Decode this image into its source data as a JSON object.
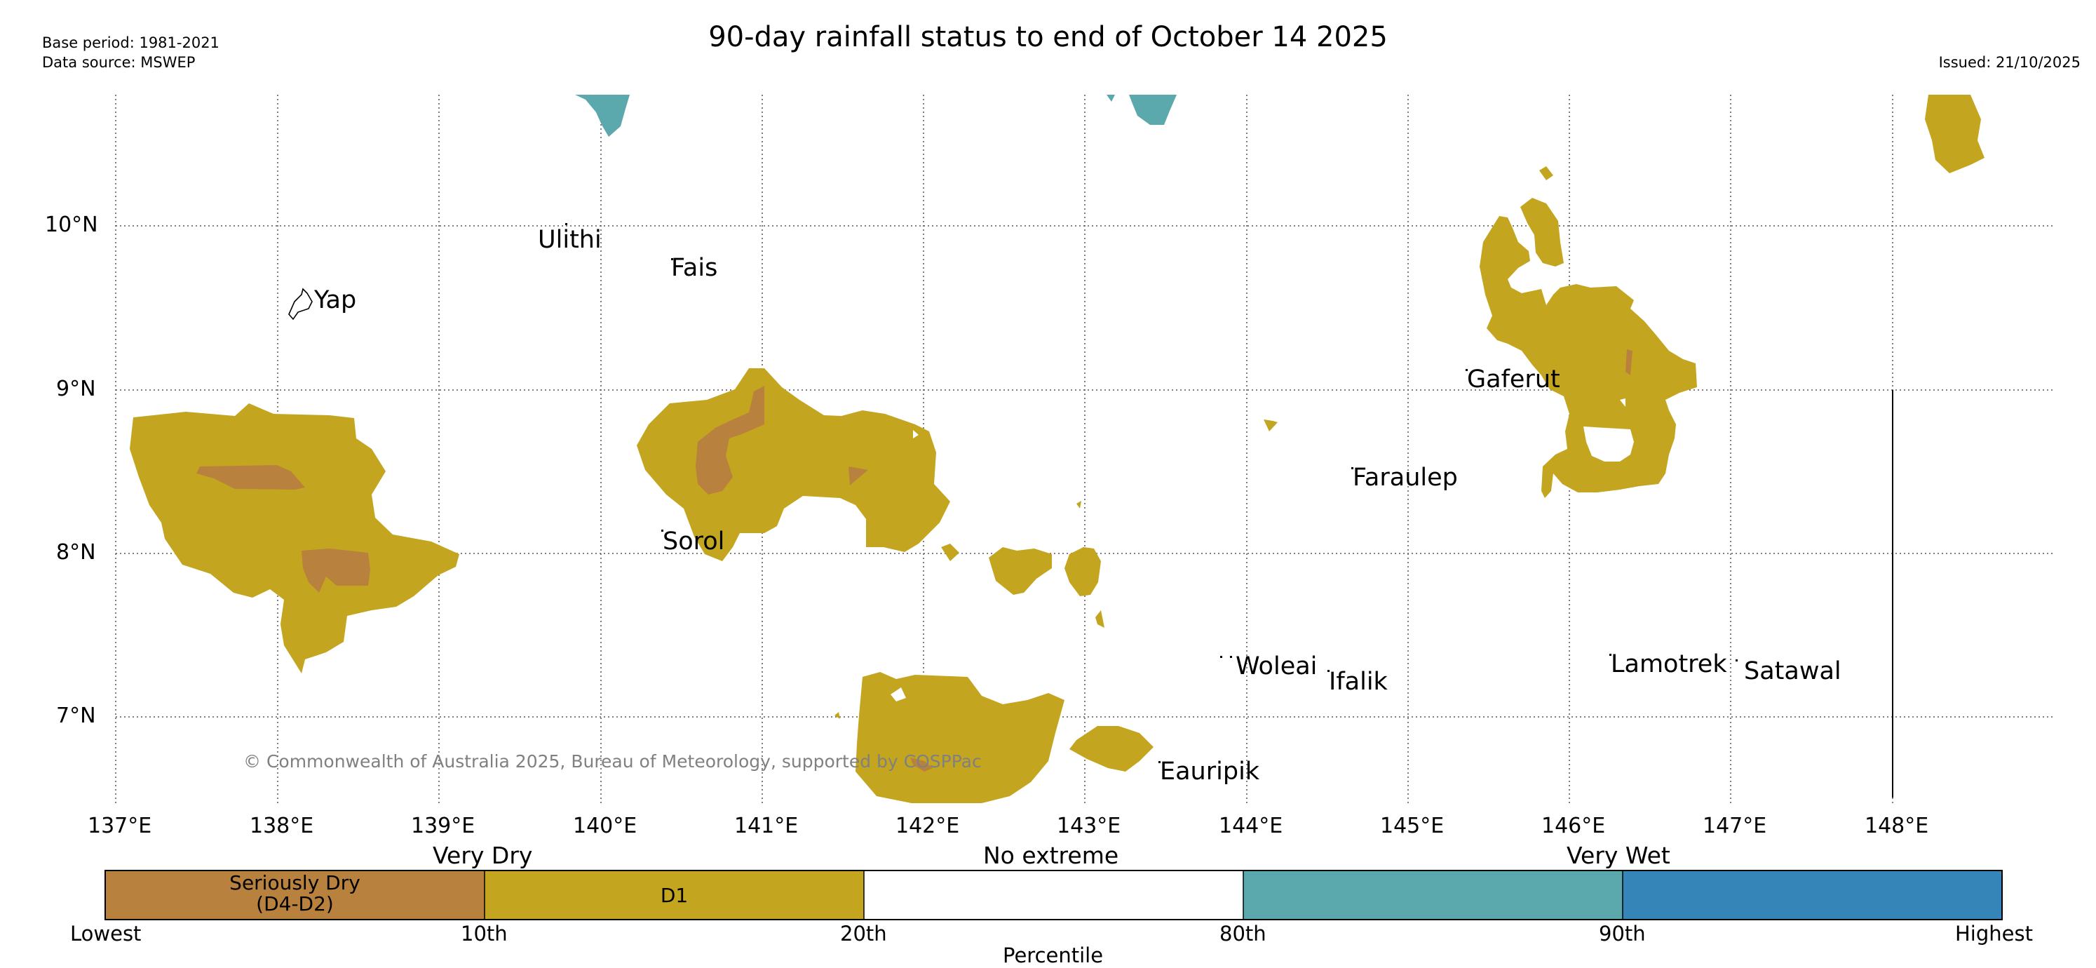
{
  "header": {
    "title": "90-day rainfall status to end of October 14 2025",
    "base_period": "Base period: 1981-2021",
    "data_source": "Data source: MSWEP",
    "issued": "Issued: 21/10/2025"
  },
  "map": {
    "lat_ticks": [
      "10°N",
      "9°N",
      "8°N",
      "7°N"
    ],
    "lon_ticks": [
      "137°E",
      "138°E",
      "139°E",
      "140°E",
      "141°E",
      "142°E",
      "143°E",
      "144°E",
      "145°E",
      "146°E",
      "147°E",
      "148°E"
    ],
    "places": [
      "Ulithi",
      "Fais",
      "Yap",
      "Gaferut",
      "Faraulep",
      "Sorol",
      "Woleai",
      "Ifalik",
      "Lamotrek",
      "Satawal",
      "Eauripik"
    ],
    "copyright": "© Commonwealth of Australia 2025, Bureau of Meteorology, supported by COSPPac",
    "colors": {
      "seriously_dry": "#b8823e",
      "d1": "#c3a520",
      "no_extreme": "#ffffff",
      "very_wet": "#5ba8ad",
      "highest_wet": "#3585b9"
    }
  },
  "legend": {
    "categories": [
      "Very Dry",
      "No extreme",
      "Very Wet"
    ],
    "segments": [
      {
        "line1": "Seriously Dry",
        "line2": "(D4-D2)"
      },
      {
        "line1": "D1",
        "line2": ""
      }
    ],
    "percentiles": [
      "Lowest",
      "10th",
      "20th",
      "80th",
      "90th",
      "Highest"
    ],
    "axis_label": "Percentile"
  }
}
